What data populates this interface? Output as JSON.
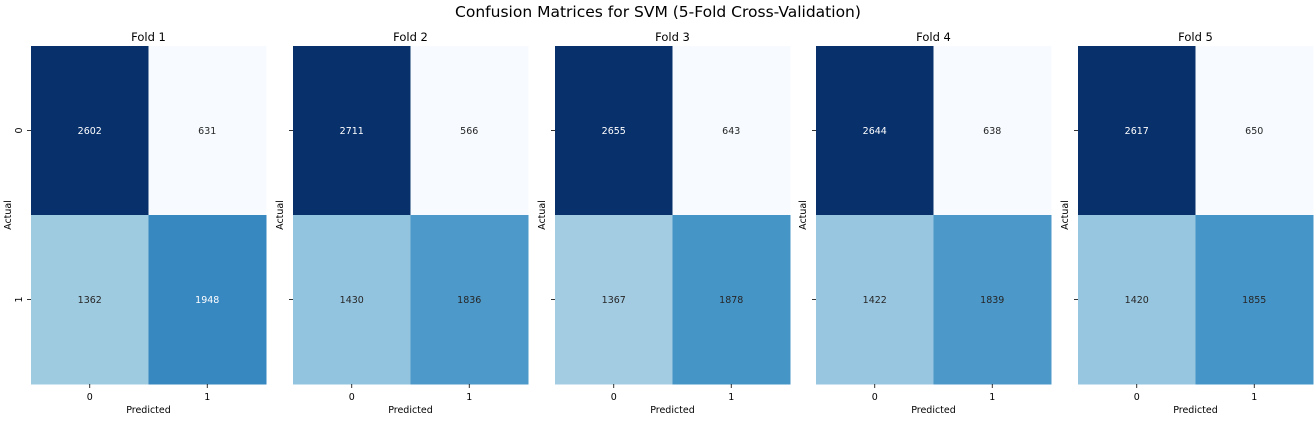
{
  "title": "Confusion Matrices for SVM (5-Fold Cross-Validation)",
  "chart_data": {
    "type": "heatmap",
    "colormap": "Blues",
    "colorbar": false,
    "grid": false,
    "x_categories": [
      "0",
      "1"
    ],
    "y_categories": [
      "0",
      "1"
    ],
    "xlabel": "Predicted",
    "ylabel": "Actual",
    "panels": [
      {
        "title": "Fold 1",
        "matrix": [
          [
            2602,
            631
          ],
          [
            1362,
            1948
          ]
        ]
      },
      {
        "title": "Fold 2",
        "matrix": [
          [
            2711,
            566
          ],
          [
            1430,
            1836
          ]
        ]
      },
      {
        "title": "Fold 3",
        "matrix": [
          [
            2655,
            643
          ],
          [
            1367,
            1878
          ]
        ]
      },
      {
        "title": "Fold 4",
        "matrix": [
          [
            2644,
            638
          ],
          [
            1422,
            1839
          ]
        ]
      },
      {
        "title": "Fold 5",
        "matrix": [
          [
            2617,
            650
          ],
          [
            1420,
            1855
          ]
        ]
      }
    ]
  }
}
